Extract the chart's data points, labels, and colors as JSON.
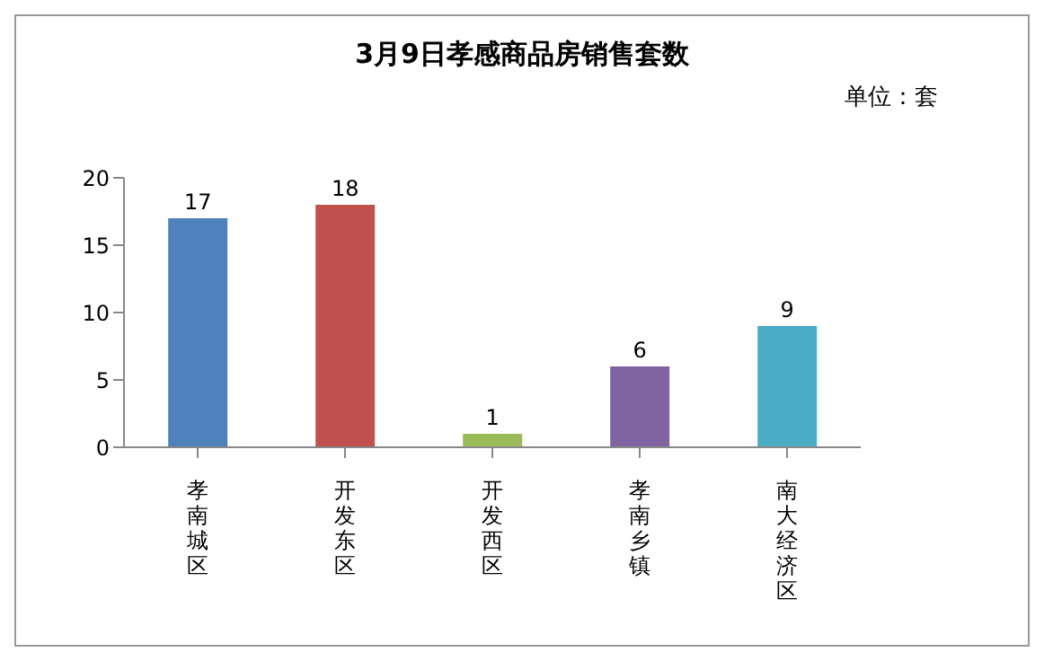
{
  "chart_data": {
    "type": "bar",
    "title": "3月9日孝感商品房销售套数",
    "annotations": [
      "单位：套"
    ],
    "categories": [
      "孝南城区",
      "开发东区",
      "开发西区",
      "孝南乡镇",
      "南大经济区"
    ],
    "values": [
      17,
      18,
      1,
      6,
      9
    ],
    "colors": [
      "#4f81bd",
      "#c0504d",
      "#9bbb59",
      "#8064a2",
      "#4bacc6"
    ],
    "ylim": [
      0,
      20
    ],
    "yticks": [
      0,
      5,
      10,
      15,
      20
    ],
    "grid": false,
    "legend": false,
    "data_labels": true
  }
}
